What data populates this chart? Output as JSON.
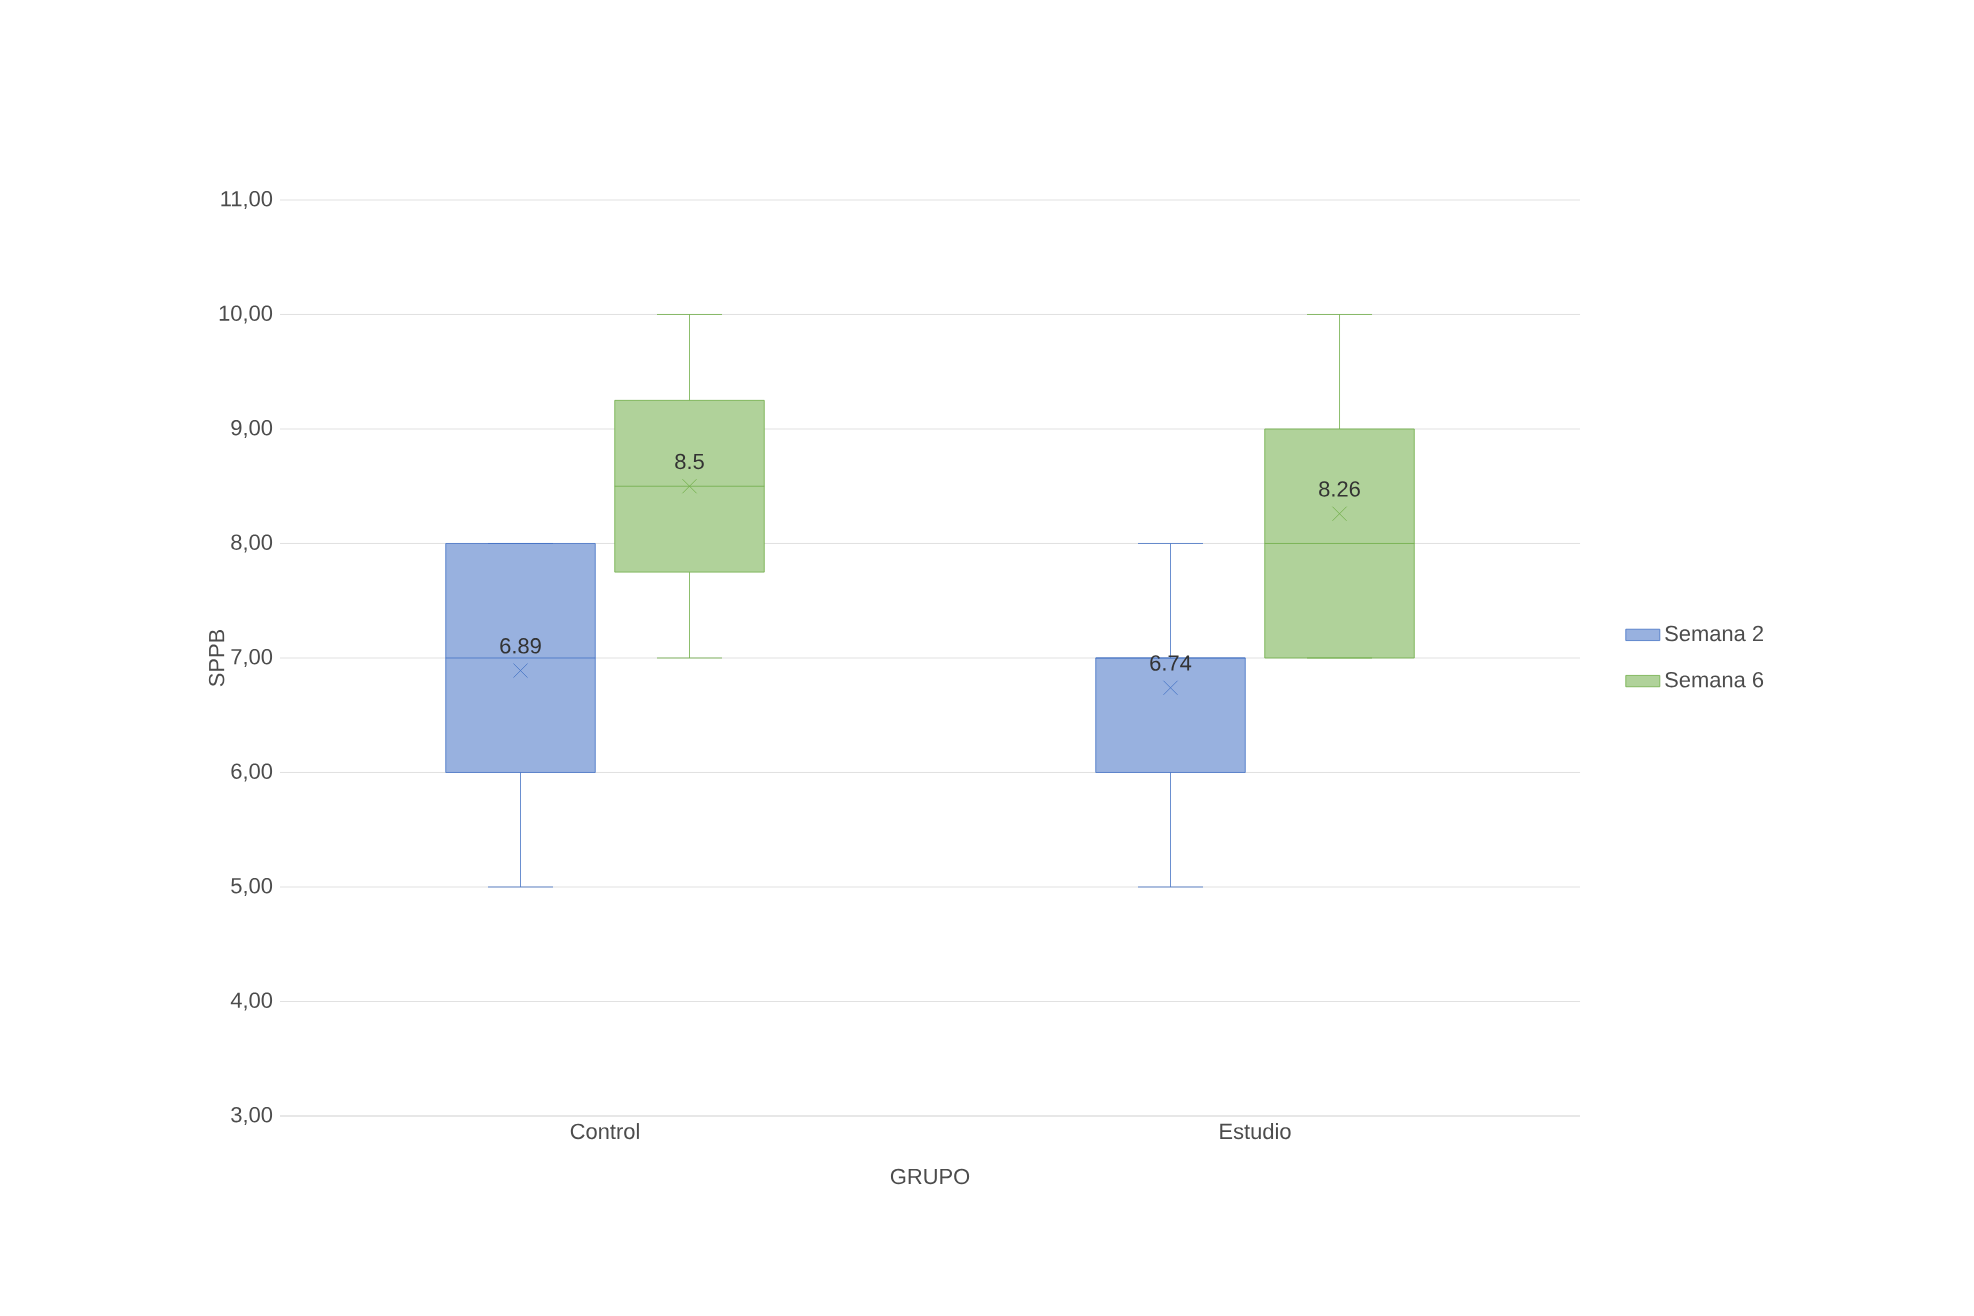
{
  "chart_data": {
    "type": "box",
    "xlabel": "GRUPO",
    "ylabel": "SPPB",
    "categories": [
      "Control",
      "Estudio"
    ],
    "series": [
      {
        "name": "Semana 2",
        "color": "#4472c4",
        "boxes": [
          {
            "low": 5,
            "q1": 6,
            "median": 7,
            "q3": 8,
            "high": 8,
            "mean": 6.89
          },
          {
            "low": 5,
            "q1": 6,
            "median": 7,
            "q3": 7,
            "high": 8,
            "mean": 6.74
          }
        ]
      },
      {
        "name": "Semana 6",
        "color": "#70ad47",
        "boxes": [
          {
            "low": 7,
            "q1": 7.75,
            "median": 8.5,
            "q3": 9.25,
            "high": 10,
            "mean": 8.5
          },
          {
            "low": 7,
            "q1": 7,
            "median": 8,
            "q3": 9,
            "high": 10,
            "mean": 8.26
          }
        ]
      }
    ],
    "ylim": [
      3,
      11
    ],
    "yticks": [
      {
        "value": 3,
        "label": "3,00"
      },
      {
        "value": 4,
        "label": "4,00"
      },
      {
        "value": 5,
        "label": "5,00"
      },
      {
        "value": 6,
        "label": "6,00"
      },
      {
        "value": 7,
        "label": "7,00"
      },
      {
        "value": 8,
        "label": "8,00"
      },
      {
        "value": 9,
        "label": "9,00"
      },
      {
        "value": 10,
        "label": "10,00"
      },
      {
        "value": 11,
        "label": "11,00"
      }
    ],
    "annotations": [
      "6.89",
      "8.5",
      "6.74",
      "8.26"
    ],
    "grid": "y",
    "legend": "right",
    "marker": "cross"
  }
}
